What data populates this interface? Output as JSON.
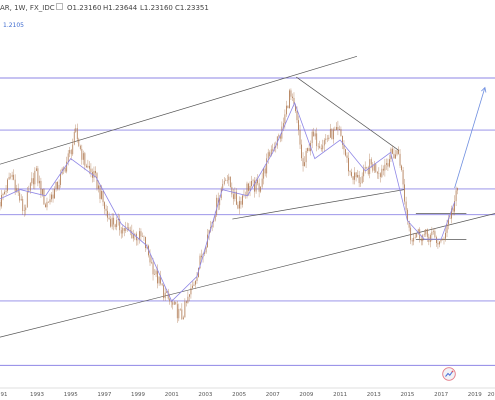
{
  "header": {
    "symbol": "AR, 1W, FX_IDC",
    "open": "O1.23160",
    "high": "H1.23644",
    "low": "L1.23160",
    "close": "C1.23351"
  },
  "price_tag": "1.2105",
  "colors": {
    "candle": "#b07a52",
    "moving_average": "#8e86e6",
    "horizontal_level": "#8e86e6",
    "trendline": "#555555",
    "projection": "#6f8fe0",
    "price_tag": "#3f6bd0"
  },
  "chart_data": {
    "type": "line",
    "title": "",
    "x_tick_labels": [
      "91",
      "1993",
      "1995",
      "1997",
      "1999",
      "2001",
      "2003",
      "2005",
      "2007",
      "2009",
      "2011",
      "2013",
      "2015",
      "2017",
      "2019",
      "20"
    ],
    "x_range": [
      1990.8,
      2020.2
    ],
    "y_range": [
      0.6,
      1.8
    ],
    "grid": false,
    "legend": "none",
    "series": [
      {
        "style": "candles",
        "x": [
          1990.8,
          1991.5,
          1992.2,
          1992.9,
          1993.5,
          1994.2,
          1994.9,
          1995.3,
          1995.8,
          1996.5,
          1997.2,
          1997.9,
          1998.6,
          1999.3,
          2000.0,
          2000.6,
          2001.1,
          2001.6,
          2002.2,
          2002.9,
          2003.6,
          2004.2,
          2004.9,
          2005.5,
          2006.2,
          2006.9,
          2007.5,
          2008.0,
          2008.4,
          2008.8,
          2009.3,
          2009.9,
          2010.5,
          2011.0,
          2011.6,
          2012.2,
          2012.8,
          2013.4,
          2014.0,
          2014.5,
          2014.9,
          2015.2,
          2015.6,
          2016.0,
          2016.5,
          2017.0,
          2017.4,
          2017.7,
          2018.0
        ],
        "y": [
          1.2,
          1.29,
          1.17,
          1.3,
          1.19,
          1.25,
          1.35,
          1.42,
          1.33,
          1.27,
          1.15,
          1.12,
          1.1,
          1.08,
          0.97,
          0.9,
          0.86,
          0.83,
          0.92,
          1.05,
          1.18,
          1.29,
          1.19,
          1.25,
          1.25,
          1.37,
          1.42,
          1.55,
          1.47,
          1.31,
          1.41,
          1.39,
          1.42,
          1.42,
          1.29,
          1.27,
          1.32,
          1.3,
          1.35,
          1.36,
          1.18,
          1.09,
          1.1,
          1.09,
          1.09,
          1.06,
          1.14,
          1.18,
          1.24
        ]
      },
      {
        "style": "moving-average",
        "x": [
          1990.8,
          1992.0,
          1993.5,
          1995.0,
          1996.5,
          1998.0,
          1999.5,
          2001.0,
          2002.5,
          2004.0,
          2005.5,
          2007.0,
          2008.3,
          2009.5,
          2011.0,
          2012.5,
          2014.0,
          2015.0,
          2016.0,
          2017.0,
          2017.8
        ],
        "y": [
          1.21,
          1.24,
          1.22,
          1.34,
          1.28,
          1.13,
          1.06,
          0.88,
          0.96,
          1.24,
          1.22,
          1.36,
          1.52,
          1.34,
          1.4,
          1.3,
          1.36,
          1.14,
          1.08,
          1.08,
          1.2
        ]
      }
    ],
    "horizontal_levels": [
      1.6,
      1.432,
      1.242,
      1.159,
      0.881,
      0.673
    ],
    "trendlines": [
      {
        "x": [
          1990.8,
          2012.0
        ],
        "y": [
          1.322,
          1.67
        ]
      },
      {
        "x": [
          2004.6,
          2014.8
        ],
        "y": [
          1.145,
          1.24
        ]
      },
      {
        "x": [
          2008.4,
          2014.5
        ],
        "y": [
          1.603,
          1.366
        ]
      },
      {
        "x": [
          1990.8,
          2020.2
        ],
        "y": [
          0.764,
          1.163
        ]
      },
      {
        "x": [
          2015.5,
          2018.5
        ],
        "y": [
          1.079,
          1.079
        ]
      },
      {
        "x": [
          2015.5,
          2018.5
        ],
        "y": [
          1.163,
          1.163
        ]
      }
    ],
    "projection": {
      "x": [
        2017.8,
        2019.6
      ],
      "y": [
        1.245,
        1.569
      ]
    }
  }
}
